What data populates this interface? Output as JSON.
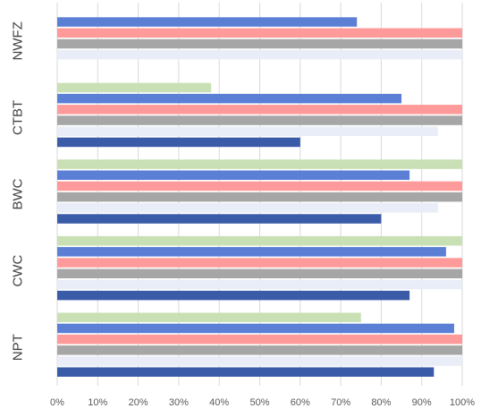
{
  "chart_data": {
    "type": "bar",
    "orientation": "horizontal",
    "categories": [
      "NPT",
      "CWC",
      "BWC",
      "CTBT",
      "NWFZ"
    ],
    "series": [
      {
        "color": "#3a5ba8",
        "values": [
          93,
          87,
          80,
          60,
          0
        ]
      },
      {
        "color": "#e9edf7",
        "values": [
          100,
          100,
          94,
          94,
          100
        ]
      },
      {
        "color": "#a6a6a6",
        "values": [
          100,
          100,
          100,
          100,
          100
        ]
      },
      {
        "color": "#ff9a9a",
        "values": [
          100,
          100,
          100,
          100,
          100
        ]
      },
      {
        "color": "#5a7fd4",
        "values": [
          98,
          96,
          87,
          85,
          74
        ]
      },
      {
        "color": "#c8e0b4",
        "values": [
          75,
          100,
          100,
          38,
          0
        ]
      }
    ],
    "xlim": [
      0,
      100
    ],
    "x_ticks": [
      "0%",
      "10%",
      "20%",
      "30%",
      "40%",
      "50%",
      "60%",
      "70%",
      "80%",
      "90%",
      "100%"
    ],
    "gridlines": true,
    "legend": false,
    "title": "",
    "xlabel": "",
    "ylabel": ""
  }
}
